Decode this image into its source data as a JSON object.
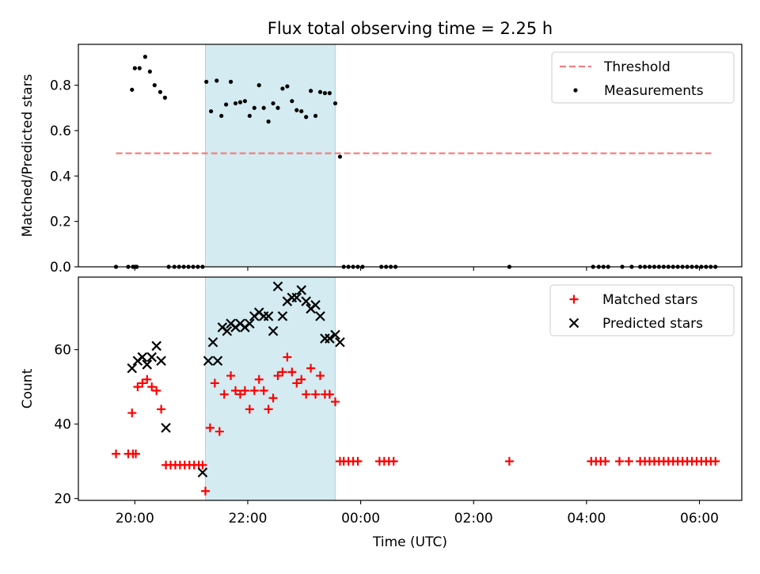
{
  "title": "Flux total observing time = 2.25 h",
  "colors": {
    "threshold": "#f08080",
    "measurement": "#000000",
    "matched": "#ff0000",
    "predicted": "#000000",
    "shade_fill": "#d3ebf1",
    "shade_edge": "#a9d8e0"
  },
  "chart_data": [
    {
      "type": "scatter",
      "xlabel": "",
      "ylabel": "Matched/Predicted stars",
      "xlim": [
        "19:00",
        "30:45"
      ],
      "ylim": [
        0,
        0.98
      ],
      "yticks": [
        0.0,
        0.2,
        0.4,
        0.6,
        0.8
      ],
      "ytick_labels": [
        "0.0",
        "0.2",
        "0.4",
        "0.6",
        "0.8"
      ],
      "grid": false,
      "legend": "top-right",
      "shaded_region": {
        "x": [
          "21:15",
          "23:33"
        ]
      },
      "series": [
        {
          "name": "Threshold",
          "kind": "line",
          "style": "dashed",
          "x": [
            "19:40",
            "30:15"
          ],
          "y": [
            0.5,
            0.5
          ]
        },
        {
          "name": "Measurements",
          "kind": "scatter",
          "marker": "dot",
          "points": [
            [
              "19:40",
              0.0
            ],
            [
              "19:53",
              0.0
            ],
            [
              "19:58",
              0.0
            ],
            [
              "20:00",
              0.0
            ],
            [
              "20:02",
              0.0
            ],
            [
              "19:57",
              0.78
            ],
            [
              "19:60",
              0.875
            ],
            [
              "20:05",
              0.875
            ],
            [
              "20:11",
              0.925
            ],
            [
              "20:16",
              0.86
            ],
            [
              "20:21",
              0.8
            ],
            [
              "20:27",
              0.77
            ],
            [
              "20:32",
              0.745
            ],
            [
              "20:36",
              0.0
            ],
            [
              "20:42",
              0.0
            ],
            [
              "20:47",
              0.0
            ],
            [
              "20:52",
              0.0
            ],
            [
              "20:57",
              0.0
            ],
            [
              "21:02",
              0.0
            ],
            [
              "21:07",
              0.0
            ],
            [
              "21:12",
              0.0
            ],
            [
              "21:16",
              0.815
            ],
            [
              "21:21",
              0.685
            ],
            [
              "21:27",
              0.82
            ],
            [
              "21:32",
              0.665
            ],
            [
              "21:37",
              0.715
            ],
            [
              "21:42",
              0.815
            ],
            [
              "21:47",
              0.72
            ],
            [
              "21:52",
              0.725
            ],
            [
              "21:57",
              0.73
            ],
            [
              "22:02",
              0.665
            ],
            [
              "22:07",
              0.7
            ],
            [
              "22:12",
              0.8
            ],
            [
              "22:17",
              0.7
            ],
            [
              "22:22",
              0.64
            ],
            [
              "22:27",
              0.72
            ],
            [
              "22:32",
              0.7
            ],
            [
              "22:37",
              0.785
            ],
            [
              "22:42",
              0.795
            ],
            [
              "22:47",
              0.73
            ],
            [
              "22:52",
              0.69
            ],
            [
              "22:57",
              0.685
            ],
            [
              "23:02",
              0.66
            ],
            [
              "23:07",
              0.775
            ],
            [
              "23:12",
              0.665
            ],
            [
              "23:17",
              0.77
            ],
            [
              "23:22",
              0.765
            ],
            [
              "23:27",
              0.765
            ],
            [
              "23:33",
              0.72
            ],
            [
              "23:38",
              0.485
            ],
            [
              "23:42",
              0.0
            ],
            [
              "23:47",
              0.0
            ],
            [
              "23:52",
              0.0
            ],
            [
              "23:57",
              0.0
            ],
            [
              "24:02",
              0.0
            ],
            [
              "24:22",
              0.0
            ],
            [
              "24:27",
              0.0
            ],
            [
              "24:32",
              0.0
            ],
            [
              "24:37",
              0.0
            ],
            [
              "26:38",
              0.0
            ],
            [
              "28:07",
              0.0
            ],
            [
              "28:13",
              0.0
            ],
            [
              "28:18",
              0.0
            ],
            [
              "28:23",
              0.0
            ],
            [
              "28:38",
              0.0
            ],
            [
              "28:48",
              0.0
            ],
            [
              "28:57",
              0.0
            ],
            [
              "29:02",
              0.0
            ],
            [
              "29:07",
              0.0
            ],
            [
              "29:12",
              0.0
            ],
            [
              "29:17",
              0.0
            ],
            [
              "29:22",
              0.0
            ],
            [
              "29:27",
              0.0
            ],
            [
              "29:32",
              0.0
            ],
            [
              "29:37",
              0.0
            ],
            [
              "29:42",
              0.0
            ],
            [
              "29:47",
              0.0
            ],
            [
              "29:52",
              0.0
            ],
            [
              "29:57",
              0.0
            ],
            [
              "30:02",
              0.0
            ],
            [
              "30:07",
              0.0
            ],
            [
              "30:12",
              0.0
            ],
            [
              "30:17",
              0.0
            ]
          ]
        }
      ]
    },
    {
      "type": "scatter",
      "xlabel": "Time (UTC)",
      "ylabel": "Count",
      "xlim": [
        "19:00",
        "30:45"
      ],
      "ylim": [
        19.5,
        79.5
      ],
      "yticks": [
        20,
        40,
        60
      ],
      "ytick_labels": [
        "20",
        "40",
        "60"
      ],
      "xticks": [
        "20:00",
        "22:00",
        "24:00",
        "26:00",
        "28:00",
        "30:00"
      ],
      "xtick_labels": [
        "20:00",
        "22:00",
        "00:00",
        "02:00",
        "04:00",
        "06:00"
      ],
      "grid": false,
      "legend": "top-right",
      "shaded_region": {
        "x": [
          "21:15",
          "23:33"
        ]
      },
      "series": [
        {
          "name": "Matched stars",
          "kind": "scatter",
          "marker": "plus",
          "points": [
            [
              "19:40",
              32
            ],
            [
              "19:53",
              32
            ],
            [
              "19:58",
              32
            ],
            [
              "20:01",
              32
            ],
            [
              "19:57",
              43
            ],
            [
              "20:03",
              50
            ],
            [
              "20:08",
              51
            ],
            [
              "20:13",
              52
            ],
            [
              "20:18",
              50
            ],
            [
              "20:23",
              49
            ],
            [
              "20:28",
              44
            ],
            [
              "20:33",
              29
            ],
            [
              "20:38",
              29
            ],
            [
              "20:43",
              29
            ],
            [
              "20:48",
              29
            ],
            [
              "20:53",
              29
            ],
            [
              "20:58",
              29
            ],
            [
              "21:03",
              29
            ],
            [
              "21:08",
              29
            ],
            [
              "21:12",
              29
            ],
            [
              "21:15",
              22
            ],
            [
              "21:20",
              39
            ],
            [
              "21:25",
              51
            ],
            [
              "21:30",
              38
            ],
            [
              "21:35",
              48
            ],
            [
              "21:42",
              53
            ],
            [
              "21:47",
              49
            ],
            [
              "21:52",
              48
            ],
            [
              "21:57",
              49
            ],
            [
              "22:02",
              44
            ],
            [
              "22:07",
              49
            ],
            [
              "22:12",
              52
            ],
            [
              "22:17",
              49
            ],
            [
              "22:22",
              44
            ],
            [
              "22:27",
              47
            ],
            [
              "22:32",
              53
            ],
            [
              "22:37",
              54
            ],
            [
              "22:42",
              58
            ],
            [
              "22:47",
              54
            ],
            [
              "22:52",
              51
            ],
            [
              "22:57",
              52
            ],
            [
              "23:02",
              48
            ],
            [
              "23:07",
              55
            ],
            [
              "23:12",
              48
            ],
            [
              "23:17",
              53
            ],
            [
              "23:22",
              48
            ],
            [
              "23:27",
              48
            ],
            [
              "23:33",
              46
            ],
            [
              "23:38",
              30
            ],
            [
              "23:42",
              30
            ],
            [
              "23:47",
              30
            ],
            [
              "23:52",
              30
            ],
            [
              "23:57",
              30
            ],
            [
              "24:20",
              30
            ],
            [
              "24:25",
              30
            ],
            [
              "24:30",
              30
            ],
            [
              "24:35",
              30
            ],
            [
              "26:38",
              30
            ],
            [
              "28:05",
              30
            ],
            [
              "28:10",
              30
            ],
            [
              "28:15",
              30
            ],
            [
              "28:20",
              30
            ],
            [
              "28:35",
              30
            ],
            [
              "28:45",
              30
            ],
            [
              "28:57",
              30
            ],
            [
              "29:02",
              30
            ],
            [
              "29:07",
              30
            ],
            [
              "29:12",
              30
            ],
            [
              "29:17",
              30
            ],
            [
              "29:22",
              30
            ],
            [
              "29:27",
              30
            ],
            [
              "29:32",
              30
            ],
            [
              "29:37",
              30
            ],
            [
              "29:42",
              30
            ],
            [
              "29:47",
              30
            ],
            [
              "29:52",
              30
            ],
            [
              "29:57",
              30
            ],
            [
              "30:02",
              30
            ],
            [
              "30:07",
              30
            ],
            [
              "30:12",
              30
            ],
            [
              "30:17",
              30
            ]
          ]
        },
        {
          "name": "Predicted stars",
          "kind": "scatter",
          "marker": "x",
          "points": [
            [
              "19:57",
              55
            ],
            [
              "20:03",
              57
            ],
            [
              "20:08",
              58
            ],
            [
              "20:13",
              56
            ],
            [
              "20:18",
              58
            ],
            [
              "20:23",
              61
            ],
            [
              "20:28",
              57
            ],
            [
              "20:33",
              39
            ],
            [
              "21:12",
              27
            ],
            [
              "21:18",
              57
            ],
            [
              "21:23",
              62
            ],
            [
              "21:28",
              57
            ],
            [
              "21:33",
              66
            ],
            [
              "21:38",
              65
            ],
            [
              "21:42",
              67
            ],
            [
              "21:47",
              66
            ],
            [
              "21:52",
              67
            ],
            [
              "21:57",
              66
            ],
            [
              "22:02",
              67
            ],
            [
              "22:07",
              69
            ],
            [
              "22:12",
              70
            ],
            [
              "22:17",
              69
            ],
            [
              "22:22",
              69
            ],
            [
              "22:27",
              65
            ],
            [
              "22:32",
              77
            ],
            [
              "22:37",
              69
            ],
            [
              "22:42",
              73
            ],
            [
              "22:47",
              74
            ],
            [
              "22:52",
              74
            ],
            [
              "22:57",
              76
            ],
            [
              "23:02",
              73
            ],
            [
              "23:07",
              71
            ],
            [
              "23:12",
              72
            ],
            [
              "23:17",
              69
            ],
            [
              "23:22",
              63
            ],
            [
              "23:27",
              63
            ],
            [
              "23:33",
              64
            ],
            [
              "23:38",
              62
            ]
          ]
        }
      ]
    }
  ]
}
